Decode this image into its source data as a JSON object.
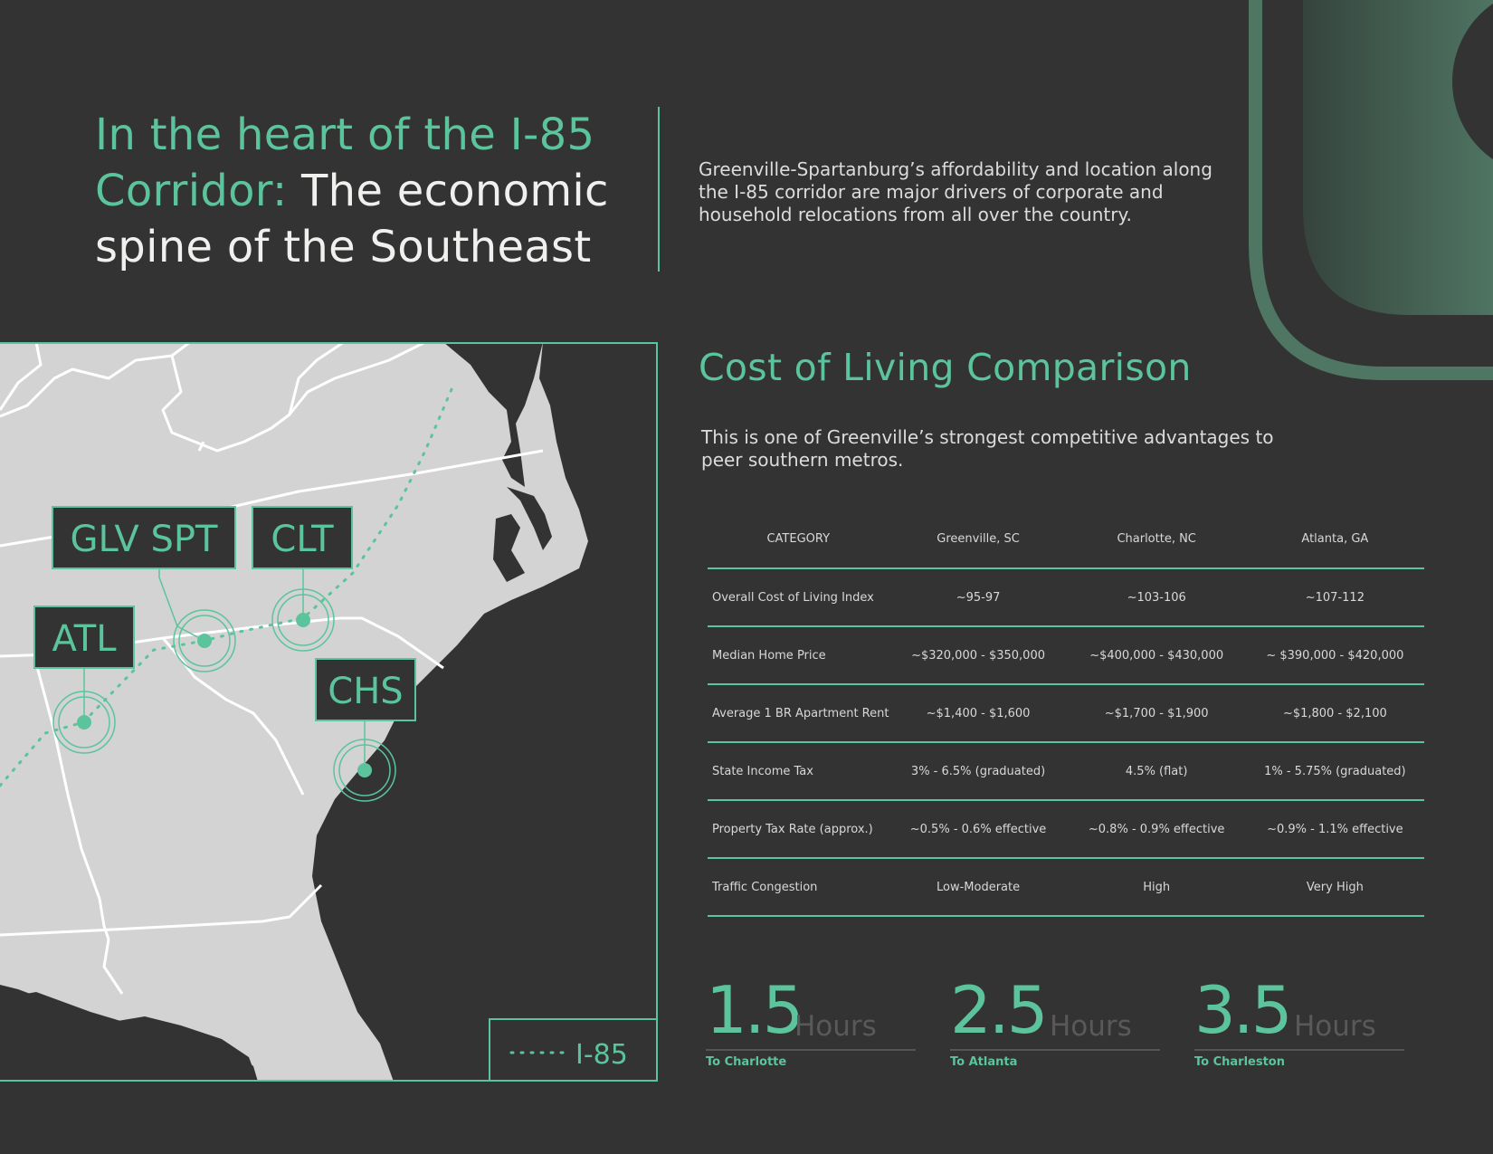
{
  "headline": {
    "accent_line1": "In the heart of the I-85",
    "accent_line2": "Corridor:",
    "rest_line2": "The economic",
    "line3": "spine of the Southeast"
  },
  "intro": "Greenville-Spartanburg’s affordability and location along the I-85 corridor are major drivers of corporate and household relocations from all over the country.",
  "map": {
    "labels": [
      "GLV SPT",
      "CLT",
      "ATL",
      "CHS"
    ],
    "legend": "I-85"
  },
  "section": {
    "title": "Cost of Living Comparison",
    "subtitle": "This is one of Greenville’s strongest competitive advantages to peer southern metros."
  },
  "table": {
    "headers": [
      "CATEGORY",
      "Greenville, SC",
      "Charlotte, NC",
      "Atlanta, GA"
    ],
    "rows": [
      [
        "Overall Cost of Living Index",
        "~95-97",
        "~103-106",
        "~107-112"
      ],
      [
        "Median Home Price",
        "~$320,000 - $350,000",
        "~$400,000 - $430,000",
        "~ $390,000 - $420,000"
      ],
      [
        "Average 1 BR Apartment Rent",
        "~$1,400 - $1,600",
        "~$1,700 - $1,900",
        "~$1,800 - $2,100"
      ],
      [
        "State Income Tax",
        "3% - 6.5% (graduated)",
        "4.5% (flat)",
        "1% - 5.75% (graduated)"
      ],
      [
        "Property Tax Rate (approx.)",
        "~0.5% - 0.6% effective",
        "~0.8% - 0.9% effective",
        "~0.9% - 1.1% effective"
      ],
      [
        "Traffic Congestion",
        "Low-Moderate",
        "High",
        "Very High"
      ]
    ]
  },
  "stats": [
    {
      "value": "1.5",
      "unit": "Hours",
      "dest": "To Charlotte"
    },
    {
      "value": "2.5",
      "unit": "Hours",
      "dest": "To Atlanta"
    },
    {
      "value": "3.5",
      "unit": "Hours",
      "dest": "To Charleston"
    }
  ],
  "colors": {
    "accent": "#5cc49d",
    "background": "#333333",
    "land": "#d3d3d3"
  }
}
